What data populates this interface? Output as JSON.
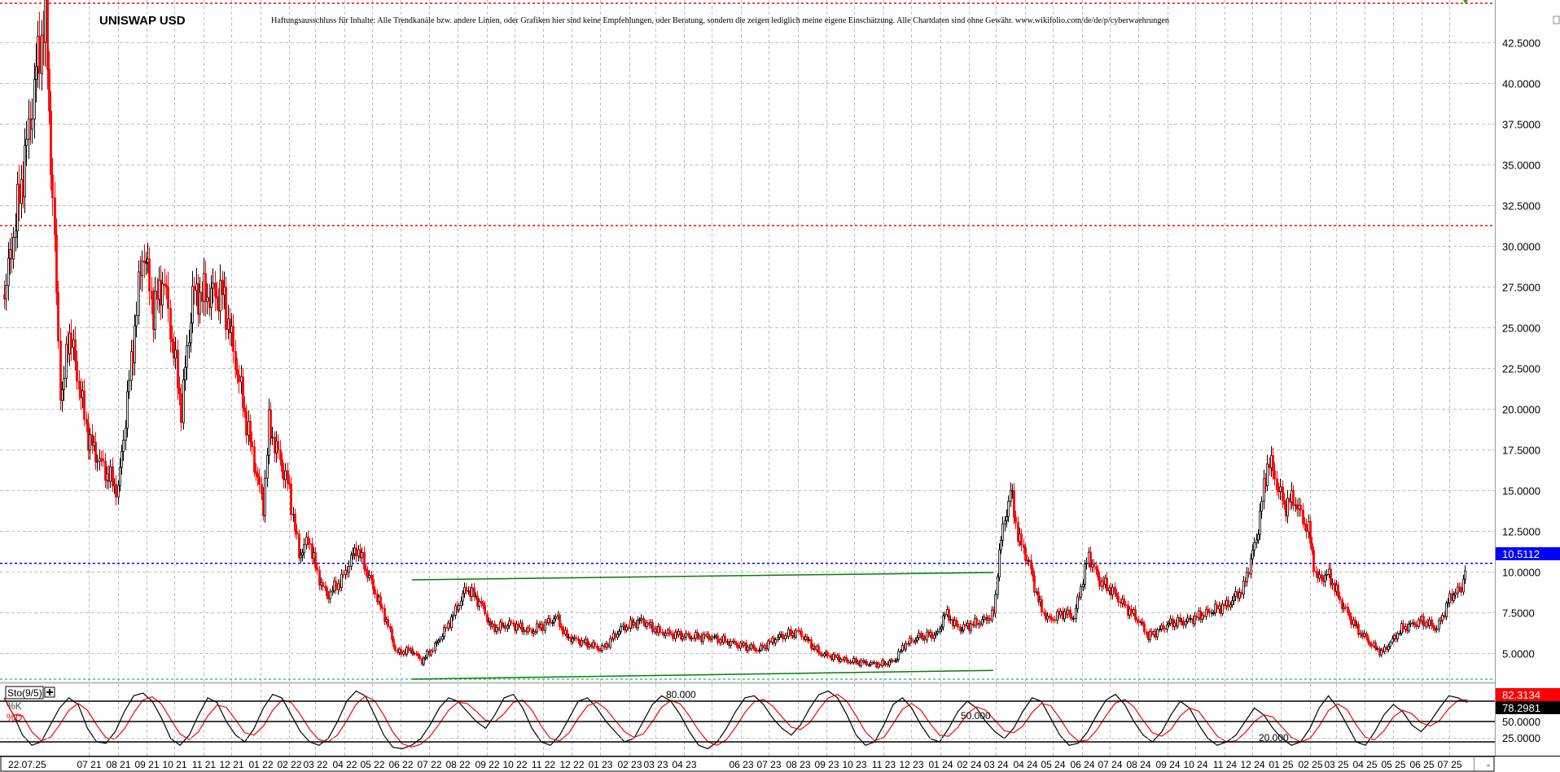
{
  "chart_data": {
    "type": "candlestick",
    "title": "UNISWAP USD",
    "disclaimer": "Haftungsausschluss für Inhalte: Alle Trendkanäle bzw. andere Linien, oder Grafiken hier sind keine Empfehlungen, oder Beratung, sondern die zeigen lediglich meine eigene Einschätzung. Alle Chartdaten sind ohne Gewähr.  www.wikifolio.com/de/de/p/cyberwaehrungen",
    "ylim": [
      3.4,
      45.1
    ],
    "y_ticks": [
      "42.5000",
      "40.0000",
      "37.5000",
      "35.0000",
      "32.5000",
      "30.0000",
      "27.5000",
      "25.0000",
      "22.5000",
      "20.0000",
      "17.5000",
      "15.0000",
      "12.5000",
      "10.0000",
      "7.5000",
      "5.0000"
    ],
    "grid": true,
    "colors": {
      "up": "#000000",
      "down": "#ff0000",
      "trend": "#008000",
      "last_price": "#0000ff",
      "resistance": "#ff0000",
      "support": "#33cc88"
    },
    "last_price": {
      "value": 10.5112,
      "label": "10.5112"
    },
    "horizontal_lines": [
      {
        "value": 44.9,
        "color": "#ff0000"
      },
      {
        "value": 31.25,
        "color": "#ff0000"
      },
      {
        "value": 3.4,
        "color": "#33cc88"
      }
    ],
    "trendlines": [
      {
        "from": [
          "2022-06-13",
          9.5
        ],
        "to": [
          "2024-02-27",
          9.95
        ]
      },
      {
        "from": [
          "2022-06-13",
          3.4
        ],
        "to": [
          "2024-02-27",
          3.94
        ]
      }
    ],
    "close_series": [
      [
        "2021-04-01",
        27
      ],
      [
        "2021-04-17",
        33
      ],
      [
        "2021-04-27",
        37
      ],
      [
        "2021-05-08",
        42
      ],
      [
        "2021-05-15",
        44
      ],
      [
        "2021-06-01",
        20
      ],
      [
        "2021-06-09",
        25
      ],
      [
        "2021-07-01",
        18
      ],
      [
        "2021-07-20",
        16
      ],
      [
        "2021-08-01",
        15
      ],
      [
        "2021-08-28",
        30
      ],
      [
        "2021-09-08",
        26
      ],
      [
        "2021-09-19",
        28
      ],
      [
        "2021-10-08",
        20
      ],
      [
        "2021-10-20",
        27
      ],
      [
        "2021-11-22",
        27
      ],
      [
        "2021-12-08",
        22
      ],
      [
        "2021-12-24",
        17
      ],
      [
        "2022-01-04",
        14
      ],
      [
        "2022-01-10",
        19
      ],
      [
        "2022-02-01",
        15
      ],
      [
        "2022-02-11",
        11
      ],
      [
        "2022-02-22",
        12
      ],
      [
        "2022-03-02",
        10
      ],
      [
        "2022-03-13",
        8.5
      ],
      [
        "2022-03-29",
        9.5
      ],
      [
        "2022-04-14",
        11.5
      ],
      [
        "2022-04-25",
        10
      ],
      [
        "2022-05-16",
        7
      ],
      [
        "2022-05-27",
        5
      ],
      [
        "2022-06-12",
        5.2
      ],
      [
        "2022-06-23",
        4.5
      ],
      [
        "2022-07-08",
        5.5
      ],
      [
        "2022-07-24",
        7
      ],
      [
        "2022-08-10",
        9
      ],
      [
        "2022-08-26",
        8
      ],
      [
        "2022-09-06",
        6.5
      ],
      [
        "2022-09-27",
        6.8
      ],
      [
        "2022-10-18",
        6.3
      ],
      [
        "2022-11-15",
        7.2
      ],
      [
        "2022-11-25",
        6
      ],
      [
        "2022-12-22",
        5.5
      ],
      [
        "2023-01-02",
        5.2
      ],
      [
        "2023-01-23",
        6.5
      ],
      [
        "2023-02-14",
        7
      ],
      [
        "2023-03-05",
        6.3
      ],
      [
        "2023-04-06",
        6
      ],
      [
        "2023-04-28",
        6
      ],
      [
        "2023-05-30",
        5.5
      ],
      [
        "2023-06-20",
        5.2
      ],
      [
        "2023-07-11",
        6
      ],
      [
        "2023-08-02",
        6.3
      ],
      [
        "2023-08-24",
        5
      ],
      [
        "2023-09-25",
        4.5
      ],
      [
        "2023-10-28",
        4.3
      ],
      [
        "2023-11-12",
        4.5
      ],
      [
        "2023-11-23",
        5.5
      ],
      [
        "2023-12-09",
        6
      ],
      [
        "2023-12-30",
        6.2
      ],
      [
        "2024-01-05",
        7.5
      ],
      [
        "2024-01-21",
        6.5
      ],
      [
        "2024-02-17",
        7
      ],
      [
        "2024-02-28",
        7.5
      ],
      [
        "2024-03-03",
        11
      ],
      [
        "2024-03-16",
        15
      ],
      [
        "2024-03-25",
        12
      ],
      [
        "2024-04-05",
        10.5
      ],
      [
        "2024-04-16",
        8
      ],
      [
        "2024-04-26",
        7
      ],
      [
        "2024-05-12",
        7.5
      ],
      [
        "2024-05-23",
        7.2
      ],
      [
        "2024-06-08",
        11
      ],
      [
        "2024-06-19",
        9.5
      ],
      [
        "2024-06-30",
        9
      ],
      [
        "2024-07-15",
        8
      ],
      [
        "2024-08-01",
        7
      ],
      [
        "2024-08-11",
        6
      ],
      [
        "2024-09-02",
        6.8
      ],
      [
        "2024-09-23",
        7
      ],
      [
        "2024-10-14",
        7.5
      ],
      [
        "2024-11-05",
        8
      ],
      [
        "2024-11-21",
        9
      ],
      [
        "2024-12-05",
        12
      ],
      [
        "2024-12-18",
        17
      ],
      [
        "2025-01-04",
        14
      ],
      [
        "2025-01-14",
        14.5
      ],
      [
        "2025-01-30",
        12.5
      ],
      [
        "2025-02-08",
        9.5
      ],
      [
        "2025-02-21",
        9.8
      ],
      [
        "2025-03-07",
        8
      ],
      [
        "2025-03-23",
        6.5
      ],
      [
        "2025-04-08",
        5.5
      ],
      [
        "2025-04-19",
        5
      ],
      [
        "2025-05-10",
        6.5
      ],
      [
        "2025-06-01",
        7
      ],
      [
        "2025-06-17",
        6.5
      ],
      [
        "2025-07-02",
        8.5
      ],
      [
        "2025-07-13",
        9
      ],
      [
        "2025-07-18",
        10.5112
      ]
    ],
    "x_ticks": [
      "07 21",
      "08 21",
      "09 21",
      "10 21",
      "11 21",
      "12 21",
      "01 22",
      "02 22",
      "03 22",
      "04 22",
      "05 22",
      "06 22",
      "07 22",
      "08 22",
      "09 22",
      "10 22",
      "11 22",
      "12 22",
      "01 23",
      "02 23",
      "03 23",
      "04 23",
      "",
      "06 23",
      "07 23",
      "08 23",
      "09 23",
      "10 23",
      "11 23",
      "12 23",
      "01 24",
      "02 24",
      "03 24",
      "04 24",
      "05 24",
      "06 24",
      "07 24",
      "08 24",
      "09 24",
      "10 24",
      "11 24",
      "12 24",
      "01 25",
      "02 25",
      "03 25",
      "04 25",
      "05 25",
      "06 25",
      "07 25"
    ],
    "cursor_date": "22.07.25",
    "x_axis_end": "-",
    "stochastic": {
      "label": "Sto(9/5)",
      "k_label": "%K",
      "d_label": "%D",
      "ylim": [
        0,
        100
      ],
      "levels": [
        {
          "value": 80,
          "label": "80.000"
        },
        {
          "value": 50,
          "label": "50.000"
        },
        {
          "value": 20,
          "label": "20.000"
        }
      ],
      "axis_labels": [
        "50.0000",
        "25.0000"
      ],
      "k_last": {
        "value": 78.2981,
        "label": "78.2981"
      },
      "d_last": {
        "value": 82.3134,
        "label": "82.3134"
      },
      "k_color": "#000000",
      "d_color": "#ff0000",
      "k_values": [
        85,
        60,
        30,
        15,
        20,
        45,
        70,
        85,
        75,
        40,
        20,
        18,
        35,
        65,
        88,
        92,
        80,
        55,
        25,
        15,
        30,
        60,
        85,
        78,
        50,
        30,
        20,
        40,
        70,
        90,
        85,
        60,
        35,
        20,
        15,
        25,
        50,
        80,
        95,
        88,
        60,
        30,
        12,
        10,
        15,
        25,
        45,
        70,
        85,
        80,
        65,
        50,
        40,
        60,
        85,
        90,
        70,
        40,
        20,
        15,
        30,
        55,
        80,
        85,
        70,
        50,
        35,
        20,
        25,
        50,
        75,
        88,
        80,
        60,
        35,
        15,
        10,
        20,
        40,
        65,
        85,
        88,
        75,
        55,
        40,
        30,
        45,
        70,
        90,
        95,
        85,
        60,
        30,
        15,
        20,
        45,
        75,
        85,
        70,
        45,
        25,
        20,
        40,
        65,
        80,
        70,
        50,
        35,
        25,
        40,
        65,
        85,
        80,
        55,
        30,
        15,
        18,
        35,
        60,
        82,
        90,
        75,
        50,
        30,
        20,
        35,
        60,
        80,
        70,
        45,
        25,
        15,
        20,
        30,
        50,
        70,
        60,
        40,
        25,
        15,
        20,
        40,
        70,
        88,
        70,
        45,
        20,
        15,
        35,
        60,
        75,
        65,
        45,
        35,
        50,
        70,
        88,
        85,
        78.2981
      ]
    }
  }
}
